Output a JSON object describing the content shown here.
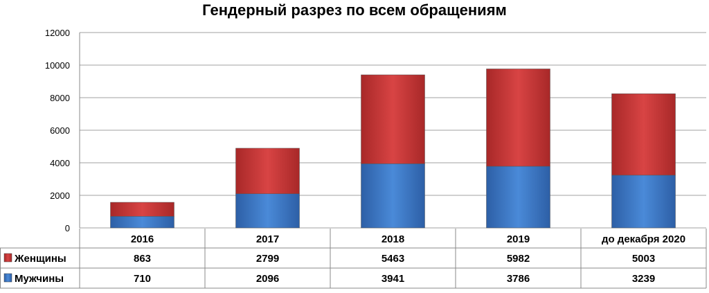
{
  "chart_data": {
    "type": "bar",
    "stacked": true,
    "title": "Гендерный разрез по всем обращениям",
    "categories": [
      "2016",
      "2017",
      "2018",
      "2019",
      "до декабря 2020"
    ],
    "series": [
      {
        "name": "Мужчины",
        "values": [
          710,
          2096,
          3941,
          3786,
          3239
        ],
        "color": "#3a78c9"
      },
      {
        "name": "Женщины",
        "values": [
          863,
          2799,
          5463,
          5982,
          5003
        ],
        "color": "#c93434"
      }
    ],
    "ylim": [
      0,
      12000
    ],
    "yticks": [
      0,
      2000,
      4000,
      6000,
      8000,
      10000,
      12000
    ],
    "grid": true,
    "legend": "data-table",
    "table_row_order": [
      "Женщины",
      "Мужчины"
    ]
  }
}
